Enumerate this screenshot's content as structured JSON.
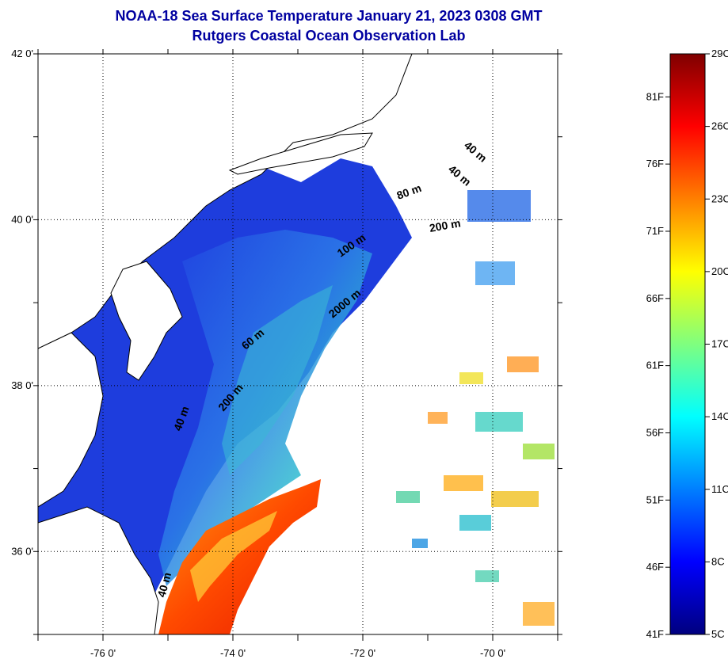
{
  "title": {
    "line1": "NOAA-18 Sea Surface Temperature January 21, 2023 0308 GMT",
    "line2": "Rutgers Coastal Ocean Observation Lab"
  },
  "map": {
    "lat_labels": [
      "42 0'",
      "40 0'",
      "38 0'",
      "36 0'"
    ],
    "lon_labels": [
      "-76 0'",
      "-74 0'",
      "-72 0'",
      "-70 0'"
    ],
    "lat_range": [
      35.0,
      42.0
    ],
    "lon_range": [
      -77.0,
      -69.0
    ],
    "grid": "dotted",
    "contour_labels": [
      "40 m",
      "40 m",
      "80 m",
      "200 m",
      "100 m",
      "2000 m",
      "60 m",
      "200 m",
      "40 m",
      "40 m"
    ]
  },
  "colorbar": {
    "celsius_labels": [
      "29C",
      "26C",
      "23C",
      "20C",
      "17C",
      "14C",
      "11C",
      "8C",
      "5C"
    ],
    "fahrenheit_labels": [
      "81F",
      "76F",
      "71F",
      "66F",
      "61F",
      "56F",
      "51F",
      "46F",
      "41F"
    ],
    "range_c": [
      5,
      29
    ],
    "colormap": [
      "#00007f",
      "#0000ff",
      "#007fff",
      "#00ffff",
      "#7fff7f",
      "#ffff00",
      "#ff7f00",
      "#ff0000",
      "#7f0000"
    ]
  }
}
